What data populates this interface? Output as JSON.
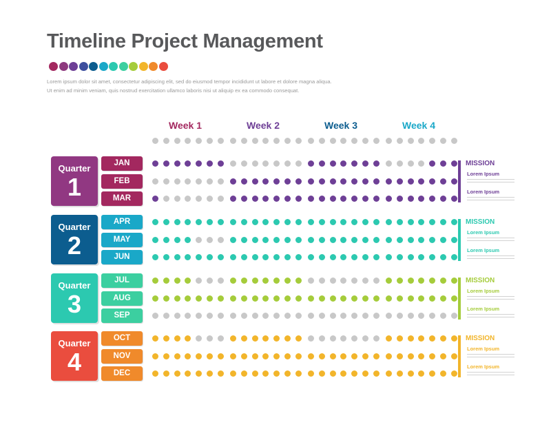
{
  "title": "Timeline Project Management",
  "description": [
    "Lorem ipsum dolor sit amet, consectetur adipiscing elit, sed do eiusmod tempor incididunt ut labore et dolore magna aliqua.",
    "Ut enim ad minim veniam, quis nostrud exercitation ullamco laboris nisi ut aliquip ex ea commodo consequat."
  ],
  "palette": [
    "#a3285f",
    "#8e3a7f",
    "#6e3f96",
    "#3d4f9e",
    "#0c5d8f",
    "#1aa8c8",
    "#2cc9b0",
    "#3ccfa0",
    "#a5cc3b",
    "#f2b52b",
    "#f08a2b",
    "#ea4d3e"
  ],
  "inactive_color": "#c8c8c8",
  "weeks": [
    {
      "label": "Week 1",
      "color": "#a3285f"
    },
    {
      "label": "Week 2",
      "color": "#6e3f96"
    },
    {
      "label": "Week 3",
      "color": "#0c5d8f"
    },
    {
      "label": "Week 4",
      "color": "#1aa8c8"
    }
  ],
  "quarters": [
    {
      "label": "Quarter",
      "number": "1",
      "color": "#913882",
      "month_color": "#a3285f",
      "dot_color": "#6e3f96",
      "months": [
        {
          "name": "JAN",
          "dots": [
            [
              1,
              1,
              1,
              1,
              1,
              1,
              1
            ],
            [
              0,
              0,
              0,
              0,
              0,
              0,
              0
            ],
            [
              1,
              1,
              1,
              1,
              1,
              1,
              1
            ],
            [
              0,
              0,
              0,
              0,
              1,
              1,
              1
            ]
          ]
        },
        {
          "name": "FEB",
          "dots": [
            [
              0,
              0,
              0,
              0,
              0,
              0,
              0
            ],
            [
              1,
              1,
              1,
              1,
              1,
              1,
              1
            ],
            [
              1,
              1,
              1,
              1,
              1,
              1,
              1
            ],
            [
              1,
              1,
              1,
              1,
              1,
              1,
              1
            ]
          ]
        },
        {
          "name": "MAR",
          "dots": [
            [
              1,
              0,
              0,
              0,
              0,
              0,
              0
            ],
            [
              1,
              1,
              1,
              1,
              1,
              1,
              1
            ],
            [
              1,
              1,
              1,
              1,
              1,
              1,
              1
            ],
            [
              1,
              1,
              1,
              1,
              1,
              1,
              1
            ]
          ]
        }
      ],
      "mission": {
        "heading": "MISSION",
        "items": [
          "Lorem Ipsum",
          "Lorem Ipsum"
        ]
      }
    },
    {
      "label": "Quarter",
      "number": "2",
      "color": "#0c5d8f",
      "month_color": "#1aa8c8",
      "dot_color": "#2cc9b0",
      "months": [
        {
          "name": "APR",
          "dots": [
            [
              1,
              1,
              1,
              1,
              1,
              1,
              1
            ],
            [
              1,
              1,
              1,
              1,
              1,
              1,
              1
            ],
            [
              1,
              1,
              1,
              1,
              1,
              1,
              1
            ],
            [
              1,
              1,
              1,
              1,
              1,
              1,
              1
            ]
          ]
        },
        {
          "name": "MAY",
          "dots": [
            [
              1,
              1,
              1,
              1,
              0,
              0,
              0
            ],
            [
              1,
              1,
              1,
              1,
              1,
              1,
              1
            ],
            [
              1,
              1,
              1,
              1,
              1,
              1,
              1
            ],
            [
              1,
              1,
              1,
              1,
              1,
              1,
              1
            ]
          ]
        },
        {
          "name": "JUN",
          "dots": [
            [
              1,
              1,
              1,
              1,
              1,
              1,
              1
            ],
            [
              1,
              1,
              1,
              1,
              1,
              1,
              1
            ],
            [
              1,
              1,
              1,
              1,
              1,
              1,
              1
            ],
            [
              1,
              1,
              1,
              1,
              1,
              1,
              1
            ]
          ]
        }
      ],
      "mission": {
        "heading": "MISSION",
        "items": [
          "Lorem Ipsum",
          "Lorem Ipsum"
        ]
      }
    },
    {
      "label": "Quarter",
      "number": "3",
      "color": "#2cc9b0",
      "month_color": "#3ccfa0",
      "dot_color": "#a5cc3b",
      "months": [
        {
          "name": "JUL",
          "dots": [
            [
              1,
              1,
              1,
              1,
              0,
              0,
              0
            ],
            [
              1,
              1,
              1,
              1,
              1,
              1,
              1
            ],
            [
              0,
              0,
              0,
              0,
              0,
              0,
              0
            ],
            [
              1,
              1,
              1,
              1,
              1,
              1,
              1
            ]
          ]
        },
        {
          "name": "AUG",
          "dots": [
            [
              1,
              1,
              1,
              1,
              1,
              1,
              1
            ],
            [
              1,
              1,
              1,
              1,
              1,
              1,
              1
            ],
            [
              1,
              1,
              1,
              1,
              1,
              1,
              1
            ],
            [
              1,
              1,
              1,
              1,
              1,
              1,
              1
            ]
          ]
        },
        {
          "name": "SEP",
          "dots": [
            [
              0,
              0,
              0,
              0,
              0,
              0,
              0
            ],
            [
              0,
              0,
              0,
              0,
              0,
              0,
              0
            ],
            [
              0,
              0,
              0,
              0,
              0,
              0,
              0
            ],
            [
              0,
              0,
              0,
              0,
              0,
              0,
              0
            ]
          ]
        }
      ],
      "mission": {
        "heading": "MISSION",
        "items": [
          "Lorem Ipsum",
          "Lorem Ipsum"
        ]
      }
    },
    {
      "label": "Quarter",
      "number": "4",
      "color": "#ea4d3e",
      "month_color": "#f08a2b",
      "dot_color": "#f2b52b",
      "months": [
        {
          "name": "OCT",
          "dots": [
            [
              1,
              1,
              1,
              1,
              0,
              0,
              0
            ],
            [
              1,
              1,
              1,
              1,
              1,
              1,
              1
            ],
            [
              0,
              0,
              0,
              0,
              0,
              0,
              0
            ],
            [
              1,
              1,
              1,
              1,
              1,
              1,
              1
            ]
          ]
        },
        {
          "name": "NOV",
          "dots": [
            [
              1,
              1,
              1,
              1,
              1,
              1,
              1
            ],
            [
              1,
              1,
              1,
              1,
              1,
              1,
              1
            ],
            [
              1,
              1,
              1,
              1,
              1,
              1,
              1
            ],
            [
              1,
              1,
              1,
              1,
              1,
              1,
              1
            ]
          ]
        },
        {
          "name": "DEC",
          "dots": [
            [
              1,
              1,
              1,
              1,
              1,
              1,
              1
            ],
            [
              1,
              1,
              1,
              1,
              1,
              1,
              1
            ],
            [
              1,
              1,
              1,
              1,
              1,
              1,
              1
            ],
            [
              1,
              1,
              1,
              1,
              1,
              1,
              1
            ]
          ]
        }
      ],
      "mission": {
        "heading": "MISSION",
        "items": [
          "Lorem Ipsum",
          "Lorem Ipsum"
        ]
      }
    }
  ]
}
